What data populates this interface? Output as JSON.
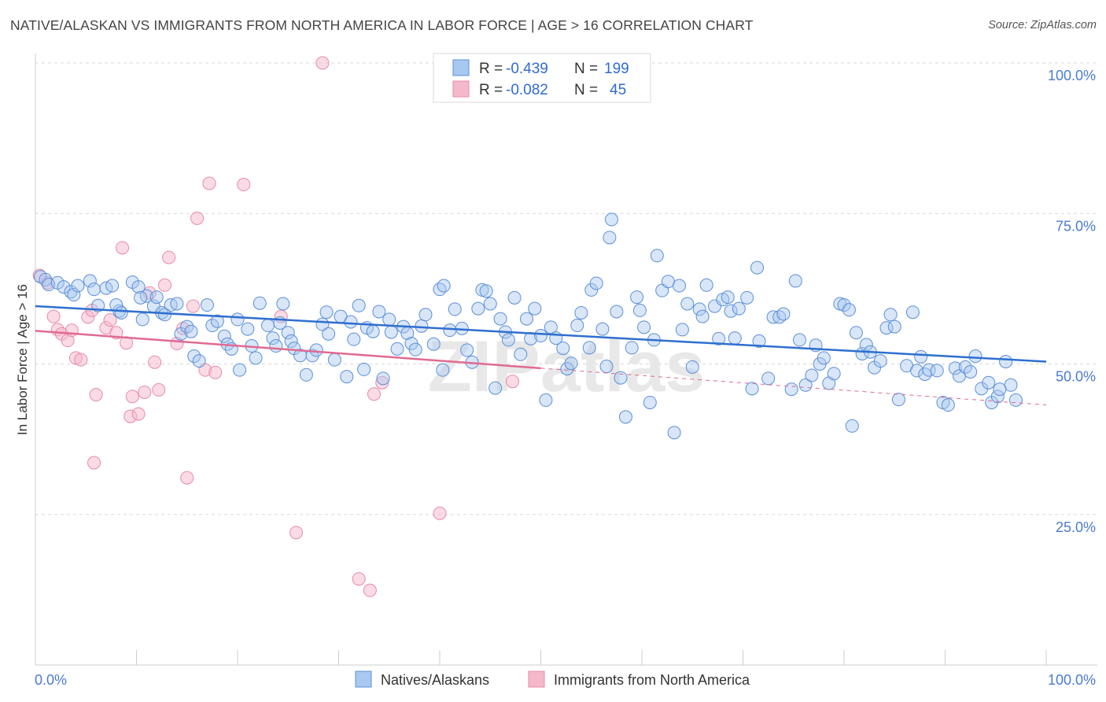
{
  "title": "NATIVE/ALASKAN VS IMMIGRANTS FROM NORTH AMERICA IN LABOR FORCE | AGE > 16 CORRELATION CHART",
  "source": "Source: ZipAtlas.com",
  "watermark": "ZIPatlas",
  "colors": {
    "blue_fill": "#a9c8f0",
    "blue_stroke": "#5b8fd8",
    "blue_line": "#2f6fd0",
    "pink_fill": "#f5b8cb",
    "pink_stroke": "#e88aa8",
    "pink_line": "#e06a92",
    "axis_text": "#4a7bd0",
    "grid": "#d8d8d8"
  },
  "stats_legend": {
    "rows": [
      {
        "r_label": "R = ",
        "r_value": "-0.439",
        "n_label": "N = ",
        "n_value": "199"
      },
      {
        "r_label": "R = ",
        "r_value": "-0.082",
        "n_label": "N = ",
        "n_value": "45"
      }
    ]
  },
  "bottom_legend": [
    "Natives/Alaskans",
    "Immigrants from North America"
  ],
  "chart_data": {
    "type": "scatter",
    "title": "NATIVE/ALASKAN VS IMMIGRANTS FROM NORTH AMERICA IN LABOR FORCE | AGE > 16 CORRELATION CHART",
    "xlabel": "",
    "ylabel": "In Labor Force | Age > 16",
    "xlim": [
      0,
      100
    ],
    "ylim": [
      0,
      102
    ],
    "x_tick_labels": [
      "0.0%",
      "100.0%"
    ],
    "y_ticks": [
      25,
      50,
      75,
      100
    ],
    "y_tick_labels": [
      "25.0%",
      "50.0%",
      "75.0%",
      "100.0%"
    ],
    "grid": true,
    "legend_position": "top-center",
    "series": [
      {
        "name": "Natives/Alaskans",
        "r": -0.439,
        "n": 199,
        "trend": {
          "x": [
            0,
            100
          ],
          "y": [
            59.6,
            50.4
          ]
        },
        "points": [
          [
            0.5,
            64.5
          ],
          [
            1.0,
            64.0
          ],
          [
            1.3,
            63.2
          ],
          [
            2.2,
            63.5
          ],
          [
            2.8,
            62.8
          ],
          [
            3.5,
            62.0
          ],
          [
            3.8,
            61.5
          ],
          [
            4.2,
            63.0
          ],
          [
            5.4,
            63.8
          ],
          [
            5.8,
            62.4
          ],
          [
            6.2,
            59.7
          ],
          [
            7.0,
            62.6
          ],
          [
            7.6,
            63.0
          ],
          [
            8.3,
            58.8
          ],
          [
            8.0,
            59.8
          ],
          [
            8.5,
            58.5
          ],
          [
            9.6,
            63.6
          ],
          [
            10.2,
            62.8
          ],
          [
            11.0,
            61.3
          ],
          [
            10.4,
            61.0
          ],
          [
            10.6,
            57.4
          ],
          [
            11.7,
            59.6
          ],
          [
            12.0,
            61.1
          ],
          [
            12.5,
            58.5
          ],
          [
            12.8,
            58.2
          ],
          [
            13.4,
            59.8
          ],
          [
            14.0,
            60.0
          ],
          [
            14.4,
            55.0
          ],
          [
            15.0,
            56.2
          ],
          [
            15.4,
            55.4
          ],
          [
            15.7,
            51.3
          ],
          [
            16.2,
            50.5
          ],
          [
            17.0,
            59.8
          ],
          [
            17.5,
            56.4
          ],
          [
            18.0,
            57.1
          ],
          [
            18.7,
            54.6
          ],
          [
            19.0,
            53.3
          ],
          [
            19.4,
            52.5
          ],
          [
            20.0,
            57.4
          ],
          [
            20.2,
            49.0
          ],
          [
            21.0,
            55.8
          ],
          [
            21.4,
            53.0
          ],
          [
            21.8,
            51.0
          ],
          [
            22.2,
            60.1
          ],
          [
            23.0,
            56.4
          ],
          [
            23.5,
            54.3
          ],
          [
            23.8,
            53.0
          ],
          [
            24.2,
            56.8
          ],
          [
            24.5,
            60.0
          ],
          [
            25.0,
            55.2
          ],
          [
            25.3,
            53.8
          ],
          [
            25.6,
            52.6
          ],
          [
            26.2,
            51.4
          ],
          [
            26.8,
            48.2
          ],
          [
            27.4,
            51.4
          ],
          [
            27.8,
            52.3
          ],
          [
            28.4,
            56.6
          ],
          [
            28.8,
            58.6
          ],
          [
            29.0,
            55.0
          ],
          [
            29.6,
            50.7
          ],
          [
            30.2,
            57.9
          ],
          [
            30.8,
            47.9
          ],
          [
            31.2,
            57.0
          ],
          [
            31.5,
            54.1
          ],
          [
            32.0,
            59.7
          ],
          [
            32.5,
            49.1
          ],
          [
            32.8,
            56.0
          ],
          [
            33.4,
            55.4
          ],
          [
            34.0,
            58.7
          ],
          [
            34.4,
            47.6
          ],
          [
            35.0,
            57.4
          ],
          [
            35.2,
            55.3
          ],
          [
            35.8,
            52.5
          ],
          [
            36.4,
            56.2
          ],
          [
            36.8,
            55.1
          ],
          [
            37.2,
            53.4
          ],
          [
            37.6,
            52.4
          ],
          [
            38.2,
            56.3
          ],
          [
            38.6,
            58.2
          ],
          [
            39.4,
            53.3
          ],
          [
            40.0,
            62.4
          ],
          [
            40.4,
            63.0
          ],
          [
            40.3,
            49.0
          ],
          [
            41.0,
            55.6
          ],
          [
            41.5,
            59.1
          ],
          [
            42.2,
            55.9
          ],
          [
            42.7,
            52.3
          ],
          [
            43.2,
            50.3
          ],
          [
            43.8,
            59.2
          ],
          [
            44.2,
            62.3
          ],
          [
            44.6,
            62.1
          ],
          [
            45.0,
            60.0
          ],
          [
            45.5,
            46.0
          ],
          [
            46.0,
            57.5
          ],
          [
            46.5,
            55.3
          ],
          [
            46.8,
            54.0
          ],
          [
            47.4,
            61.0
          ],
          [
            48.0,
            51.6
          ],
          [
            48.6,
            57.5
          ],
          [
            49.0,
            54.2
          ],
          [
            49.4,
            59.2
          ],
          [
            50.0,
            54.7
          ],
          [
            50.5,
            44.0
          ],
          [
            51.0,
            56.1
          ],
          [
            51.5,
            54.3
          ],
          [
            52.2,
            52.6
          ],
          [
            52.6,
            49.2
          ],
          [
            53.0,
            50.1
          ],
          [
            53.6,
            56.4
          ],
          [
            54.0,
            58.5
          ],
          [
            54.8,
            52.7
          ],
          [
            55.0,
            62.3
          ],
          [
            55.5,
            63.4
          ],
          [
            56.1,
            55.8
          ],
          [
            56.5,
            49.6
          ],
          [
            57.0,
            74.0
          ],
          [
            56.8,
            71.0
          ],
          [
            57.5,
            58.7
          ],
          [
            57.9,
            47.7
          ],
          [
            58.4,
            41.2
          ],
          [
            59.0,
            52.7
          ],
          [
            59.5,
            61.1
          ],
          [
            59.8,
            58.9
          ],
          [
            60.2,
            56.1
          ],
          [
            60.8,
            43.6
          ],
          [
            61.2,
            54.0
          ],
          [
            61.5,
            68.0
          ],
          [
            62.0,
            62.2
          ],
          [
            62.6,
            63.7
          ],
          [
            63.2,
            38.6
          ],
          [
            63.7,
            63.0
          ],
          [
            64.0,
            55.7
          ],
          [
            64.5,
            60.0
          ],
          [
            65.0,
            49.5
          ],
          [
            65.7,
            59.1
          ],
          [
            66.0,
            57.9
          ],
          [
            66.4,
            63.1
          ],
          [
            67.2,
            59.6
          ],
          [
            67.6,
            54.2
          ],
          [
            68.0,
            60.7
          ],
          [
            68.5,
            61.1
          ],
          [
            68.8,
            58.8
          ],
          [
            69.2,
            54.3
          ],
          [
            69.6,
            59.2
          ],
          [
            70.4,
            61.0
          ],
          [
            70.9,
            45.9
          ],
          [
            71.4,
            66.0
          ],
          [
            71.6,
            53.8
          ],
          [
            72.5,
            47.6
          ],
          [
            73.0,
            57.8
          ],
          [
            73.6,
            57.8
          ],
          [
            74.0,
            58.3
          ],
          [
            74.8,
            45.8
          ],
          [
            75.2,
            63.8
          ],
          [
            75.6,
            54.0
          ],
          [
            76.2,
            46.5
          ],
          [
            76.8,
            48.1
          ],
          [
            77.2,
            53.1
          ],
          [
            77.6,
            50.0
          ],
          [
            78.0,
            51.0
          ],
          [
            78.5,
            46.8
          ],
          [
            79.0,
            48.4
          ],
          [
            79.6,
            60.0
          ],
          [
            80.0,
            59.8
          ],
          [
            80.5,
            59.0
          ],
          [
            80.8,
            39.7
          ],
          [
            81.2,
            55.2
          ],
          [
            81.8,
            51.7
          ],
          [
            82.2,
            53.2
          ],
          [
            82.6,
            52.0
          ],
          [
            83.0,
            49.4
          ],
          [
            83.6,
            50.5
          ],
          [
            84.2,
            56.0
          ],
          [
            84.6,
            58.2
          ],
          [
            85.0,
            56.2
          ],
          [
            85.4,
            44.1
          ],
          [
            86.2,
            49.7
          ],
          [
            86.8,
            58.6
          ],
          [
            87.2,
            48.9
          ],
          [
            87.6,
            51.2
          ],
          [
            88.0,
            48.3
          ],
          [
            88.4,
            49.0
          ],
          [
            89.2,
            48.9
          ],
          [
            89.8,
            43.6
          ],
          [
            90.3,
            43.2
          ],
          [
            91.0,
            49.3
          ],
          [
            91.4,
            48.0
          ],
          [
            92.0,
            49.5
          ],
          [
            92.5,
            48.7
          ],
          [
            93.0,
            51.3
          ],
          [
            93.6,
            45.9
          ],
          [
            94.3,
            46.9
          ],
          [
            94.6,
            43.6
          ],
          [
            95.2,
            44.6
          ],
          [
            96.0,
            50.4
          ],
          [
            96.5,
            46.5
          ],
          [
            97.0,
            44.0
          ],
          [
            95.4,
            45.8
          ]
        ]
      },
      {
        "name": "Immigrants from North America",
        "r": -0.082,
        "n": 45,
        "trend": {
          "x": [
            0,
            50
          ],
          "y": [
            55.5,
            49.3
          ]
        },
        "trend_dashed": {
          "x": [
            50,
            100
          ],
          "y": [
            49.3,
            43.2
          ]
        },
        "points": [
          [
            0.4,
            64.7
          ],
          [
            1.2,
            63.5
          ],
          [
            1.8,
            57.9
          ],
          [
            2.2,
            55.7
          ],
          [
            2.6,
            55.0
          ],
          [
            3.2,
            53.9
          ],
          [
            3.6,
            55.6
          ],
          [
            4.0,
            51.0
          ],
          [
            4.5,
            50.7
          ],
          [
            5.2,
            57.8
          ],
          [
            5.6,
            58.9
          ],
          [
            6.0,
            44.9
          ],
          [
            5.8,
            33.6
          ],
          [
            7.0,
            56.0
          ],
          [
            7.4,
            57.3
          ],
          [
            8.0,
            55.2
          ],
          [
            8.6,
            69.3
          ],
          [
            9.0,
            53.5
          ],
          [
            9.4,
            41.3
          ],
          [
            9.6,
            44.6
          ],
          [
            10.2,
            41.7
          ],
          [
            10.8,
            45.3
          ],
          [
            11.3,
            61.8
          ],
          [
            11.8,
            50.3
          ],
          [
            12.2,
            45.7
          ],
          [
            12.8,
            63.1
          ],
          [
            13.2,
            67.7
          ],
          [
            14.0,
            53.4
          ],
          [
            14.6,
            55.9
          ],
          [
            15.0,
            31.1
          ],
          [
            15.6,
            59.6
          ],
          [
            16.0,
            74.2
          ],
          [
            16.8,
            49.0
          ],
          [
            17.2,
            80.0
          ],
          [
            17.8,
            48.6
          ],
          [
            20.6,
            79.8
          ],
          [
            24.3,
            57.9
          ],
          [
            25.8,
            22.0
          ],
          [
            28.4,
            100.0
          ],
          [
            32.0,
            14.3
          ],
          [
            33.1,
            12.4
          ],
          [
            33.5,
            45.0
          ],
          [
            34.3,
            46.9
          ],
          [
            40.0,
            25.2
          ],
          [
            47.2,
            47.1
          ]
        ]
      }
    ]
  }
}
